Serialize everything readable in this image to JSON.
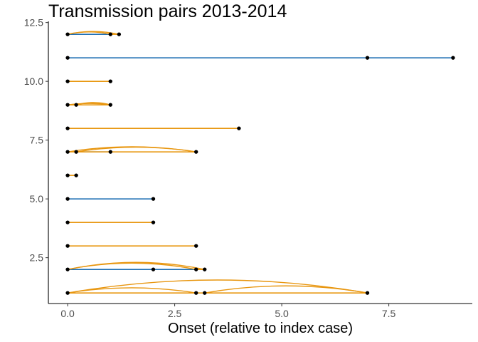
{
  "chart_data": {
    "type": "scatter",
    "title": "Transmission pairs 2013-2014",
    "xlabel": "Onset (relative to index case)",
    "ylabel": "",
    "xlim": [
      -0.45,
      9.45
    ],
    "ylim": [
      0.55,
      12.55
    ],
    "x_ticks": [
      0.0,
      2.5,
      5.0,
      7.5
    ],
    "x_tick_labels": [
      "0.0",
      "2.5",
      "5.0",
      "7.5"
    ],
    "y_ticks": [
      2.5,
      5.0,
      7.5,
      10.0,
      12.5
    ],
    "y_tick_labels": [
      "2.5",
      "5.0",
      "7.5",
      "10.0",
      "12.5"
    ],
    "grid": false,
    "colors": {
      "blue": "#1f6fb4",
      "orange": "#e8960f",
      "point": "#000000"
    },
    "series": [
      {
        "values": [
          {
            "y": 1,
            "x": [
              0,
              3,
              3.2,
              7
            ]
          },
          {
            "y": 2,
            "x": [
              0,
              2,
              3,
              3.2
            ]
          },
          {
            "y": 3,
            "x": [
              0,
              3
            ]
          },
          {
            "y": 4,
            "x": [
              0,
              2
            ]
          },
          {
            "y": 5,
            "x": [
              0,
              2
            ]
          },
          {
            "y": 6,
            "x": [
              0,
              0.2
            ]
          },
          {
            "y": 7,
            "x": [
              0,
              0.2,
              1,
              3
            ]
          },
          {
            "y": 8,
            "x": [
              0,
              4
            ]
          },
          {
            "y": 9,
            "x": [
              0,
              0.2,
              1
            ]
          },
          {
            "y": 10,
            "x": [
              0,
              1
            ]
          },
          {
            "y": 11,
            "x": [
              0,
              7,
              9
            ]
          },
          {
            "y": 12,
            "x": [
              0,
              1,
              1.2
            ]
          }
        ]
      },
      {
        "values": [
          {
            "y": 2,
            "from": 0,
            "to": 3,
            "color": "blue"
          },
          {
            "y": 5,
            "from": 0,
            "to": 2,
            "color": "blue"
          },
          {
            "y": 7,
            "from": 0,
            "to": 1,
            "color": "blue"
          },
          {
            "y": 11,
            "from": 0,
            "to": 7,
            "color": "blue"
          },
          {
            "y": 11,
            "from": 7,
            "to": 9,
            "color": "blue"
          },
          {
            "y": 12,
            "from": 0,
            "to": 1,
            "color": "blue"
          },
          {
            "y": 1,
            "from": 0,
            "to": 7,
            "color": "orange"
          },
          {
            "y": 2,
            "from": 3,
            "to": 3.2,
            "color": "orange"
          },
          {
            "y": 3,
            "from": 0,
            "to": 3,
            "color": "orange"
          },
          {
            "y": 4,
            "from": 0,
            "to": 2,
            "color": "orange"
          },
          {
            "y": 6,
            "from": 0,
            "to": 0.2,
            "color": "orange"
          },
          {
            "y": 7,
            "from": 0,
            "to": 3,
            "color": "orange"
          },
          {
            "y": 8,
            "from": 0,
            "to": 4,
            "color": "orange"
          },
          {
            "y": 9,
            "from": 0,
            "to": 1,
            "color": "orange"
          },
          {
            "y": 10,
            "from": 0,
            "to": 1,
            "color": "orange"
          },
          {
            "y": 12,
            "from": 1,
            "to": 1.2,
            "color": "orange"
          }
        ]
      },
      {
        "values": [
          {
            "y": 1,
            "from": 0,
            "to": 7,
            "height": 0.55
          },
          {
            "y": 1,
            "from": 0,
            "to": 3,
            "height": 0.22
          },
          {
            "y": 1,
            "from": 3.2,
            "to": 7,
            "height": 0.3
          },
          {
            "y": 2,
            "from": 0,
            "to": 3.2,
            "height": 0.3
          },
          {
            "y": 2,
            "from": 0,
            "to": 3,
            "height": 0.27
          },
          {
            "y": 7,
            "from": 0,
            "to": 3,
            "height": 0.22
          },
          {
            "y": 7,
            "from": 0.2,
            "to": 3,
            "height": 0.2
          },
          {
            "y": 9,
            "from": 0.2,
            "to": 1,
            "height": 0.1
          },
          {
            "y": 9,
            "from": 0,
            "to": 1,
            "height": 0.06
          },
          {
            "y": 12,
            "from": 0,
            "to": 1.2,
            "height": 0.12
          },
          {
            "y": 12,
            "from": 0,
            "to": 1,
            "height": 0.1
          }
        ]
      }
    ]
  }
}
